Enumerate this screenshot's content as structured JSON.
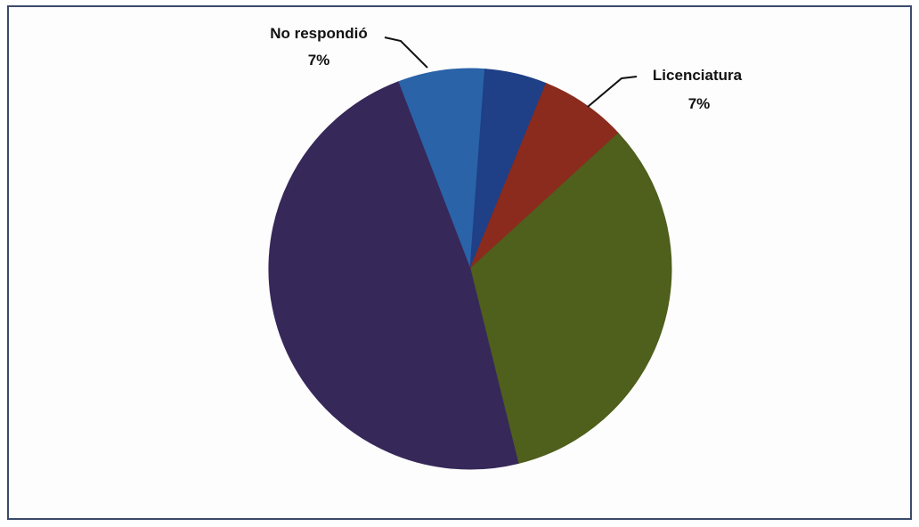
{
  "chart_data": {
    "type": "pie",
    "slices": [
      {
        "key": "no_respondio",
        "label": "No respondió",
        "value": 7,
        "value_label": "7%",
        "color": "#2a63a8"
      },
      {
        "key": "segundo",
        "label": "",
        "value": 5,
        "value_label": "",
        "color": "#1f3f86"
      },
      {
        "key": "licenciatura",
        "label": "Licenciatura",
        "value": 7,
        "value_label": "7%",
        "color": "#8b2b1d"
      },
      {
        "key": "verde",
        "label": "",
        "value": 33,
        "value_label": "",
        "color": "#4f5f1c"
      },
      {
        "key": "morado",
        "label": "",
        "value": 48,
        "value_label": "",
        "color": "#37285a"
      }
    ]
  }
}
